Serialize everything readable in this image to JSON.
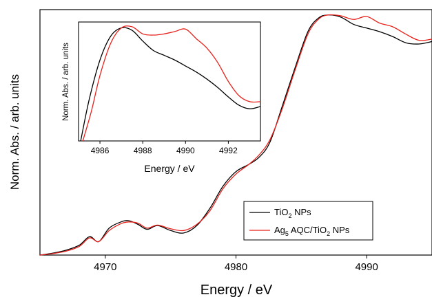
{
  "chart_data": [
    {
      "type": "line",
      "title": "",
      "xlabel": "Energy / eV",
      "ylabel": "Norm. Abs. / arb. units",
      "xlim": [
        4965,
        4995
      ],
      "ylim": [
        0,
        1.0
      ],
      "xticks": [
        4970,
        4980,
        4990
      ],
      "y_ticklabels": false,
      "grid": false,
      "legend_position": "bottom-right",
      "series": [
        {
          "name": "TiO2 NPs",
          "name_main": "TiO",
          "name_sub": "2",
          "name_tail": " NPs",
          "color": "#000000",
          "x": [
            4965,
            4966,
            4967,
            4968,
            4968.8,
            4969.5,
            4970.3,
            4971.2,
            4971.8,
            4972.5,
            4973.2,
            4974.0,
            4975.0,
            4976.0,
            4977.0,
            4978.0,
            4979.0,
            4980.0,
            4981.0,
            4981.8,
            4982.6,
            4983.5,
            4984.5,
            4985.5,
            4986.3,
            4987.0,
            4988.0,
            4989.0,
            4990.0,
            4991.0,
            4992.0,
            4993.0,
            4994.0,
            4995.0
          ],
          "y": [
            0.0,
            0.008,
            0.02,
            0.04,
            0.075,
            0.055,
            0.11,
            0.135,
            0.14,
            0.125,
            0.105,
            0.12,
            0.1,
            0.09,
            0.12,
            0.19,
            0.28,
            0.34,
            0.37,
            0.4,
            0.46,
            0.6,
            0.76,
            0.91,
            0.965,
            0.978,
            0.97,
            0.94,
            0.925,
            0.91,
            0.89,
            0.865,
            0.86,
            0.87
          ]
        },
        {
          "name": "Ag5 AQC/TiO2 NPs",
          "name_main": "Ag",
          "name_sub": "5",
          "name_mid": " AQC/TiO",
          "name_sub2": "2",
          "name_tail": " NPs",
          "color": "#e8201a",
          "x": [
            4965,
            4966,
            4967,
            4968,
            4968.8,
            4969.5,
            4970.3,
            4971.2,
            4971.8,
            4972.5,
            4973.2,
            4974.0,
            4975.0,
            4976.0,
            4977.0,
            4978.0,
            4979.0,
            4980.0,
            4981.0,
            4981.8,
            4982.6,
            4983.5,
            4984.5,
            4985.5,
            4986.3,
            4987.0,
            4988.0,
            4989.0,
            4990.0,
            4991.0,
            4992.0,
            4993.0,
            4994.0,
            4995.0
          ],
          "y": [
            0.0,
            0.006,
            0.016,
            0.035,
            0.07,
            0.055,
            0.1,
            0.128,
            0.135,
            0.13,
            0.11,
            0.122,
            0.107,
            0.1,
            0.125,
            0.18,
            0.27,
            0.33,
            0.37,
            0.41,
            0.47,
            0.59,
            0.75,
            0.9,
            0.96,
            0.978,
            0.975,
            0.96,
            0.972,
            0.945,
            0.93,
            0.9,
            0.875,
            0.88
          ]
        }
      ]
    },
    {
      "type": "line",
      "title": "",
      "xlabel": "Energy / eV",
      "ylabel": "Norm. Abs. / arb. units",
      "xlim": [
        4985,
        4993.5
      ],
      "ylim": [
        0,
        1.0
      ],
      "xticks": [
        4986,
        4988,
        4990,
        4992
      ],
      "y_ticklabels": false,
      "grid": false,
      "series": [
        {
          "name": "TiO2 NPs",
          "color": "#000000",
          "x": [
            4985.1,
            4985.5,
            4986.0,
            4986.5,
            4987.0,
            4987.5,
            4988.0,
            4988.5,
            4989.0,
            4989.5,
            4990.0,
            4990.5,
            4991.0,
            4991.5,
            4992.0,
            4992.5,
            4993.0,
            4993.5
          ],
          "y": [
            0.0,
            0.35,
            0.68,
            0.88,
            0.95,
            0.93,
            0.84,
            0.76,
            0.72,
            0.68,
            0.63,
            0.58,
            0.52,
            0.45,
            0.37,
            0.3,
            0.27,
            0.29
          ]
        },
        {
          "name": "Ag5 AQC/TiO2 NPs",
          "color": "#e8201a",
          "x": [
            4985.2,
            4985.6,
            4986.0,
            4986.5,
            4987.0,
            4987.5,
            4988.0,
            4988.5,
            4989.0,
            4989.5,
            4990.0,
            4990.5,
            4991.0,
            4991.5,
            4992.0,
            4992.5,
            4993.0,
            4993.5
          ],
          "y": [
            0.0,
            0.25,
            0.55,
            0.82,
            0.95,
            0.96,
            0.9,
            0.89,
            0.9,
            0.92,
            0.94,
            0.86,
            0.78,
            0.66,
            0.5,
            0.38,
            0.33,
            0.33
          ]
        }
      ]
    }
  ]
}
